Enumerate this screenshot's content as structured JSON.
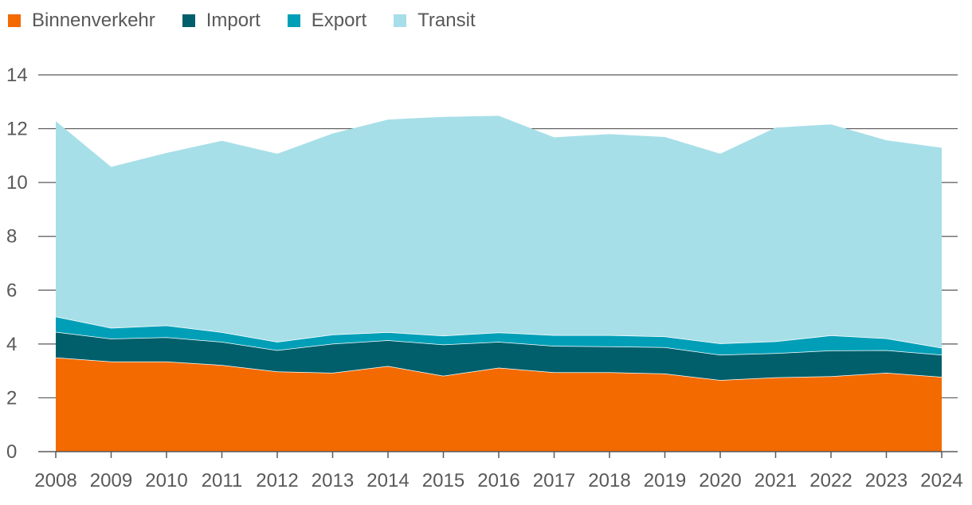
{
  "chart_data": {
    "type": "area",
    "stacked": true,
    "title": "",
    "xlabel": "",
    "ylabel": "",
    "ylim": [
      0,
      14
    ],
    "yticks": [
      0,
      2,
      4,
      6,
      8,
      10,
      12,
      14
    ],
    "grid": true,
    "legend_position": "top-left",
    "x": [
      "2008",
      "2009",
      "2010",
      "2011",
      "2012",
      "2013",
      "2014",
      "2015",
      "2016",
      "2017",
      "2018",
      "2019",
      "2020",
      "2021",
      "2022",
      "2023",
      "2024"
    ],
    "series": [
      {
        "name": "Binnenverkehr",
        "color": "#f26a00",
        "values": [
          3.5,
          3.35,
          3.35,
          3.22,
          2.98,
          2.93,
          3.18,
          2.82,
          3.12,
          2.95,
          2.95,
          2.9,
          2.66,
          2.76,
          2.8,
          2.93,
          2.78
        ]
      },
      {
        "name": "Import",
        "color": "#005f6b",
        "values": [
          0.95,
          0.85,
          0.9,
          0.86,
          0.79,
          1.08,
          0.96,
          1.16,
          0.96,
          0.98,
          0.96,
          0.98,
          0.94,
          0.9,
          0.96,
          0.84,
          0.82
        ]
      },
      {
        "name": "Export",
        "color": "#009fb7",
        "values": [
          0.57,
          0.4,
          0.44,
          0.36,
          0.31,
          0.34,
          0.3,
          0.33,
          0.35,
          0.4,
          0.42,
          0.4,
          0.42,
          0.44,
          0.56,
          0.44,
          0.26
        ]
      },
      {
        "name": "Transit",
        "color": "#a7dfe8",
        "values": [
          7.26,
          5.98,
          6.41,
          7.11,
          6.99,
          7.47,
          7.9,
          8.13,
          8.05,
          7.35,
          7.47,
          7.41,
          7.05,
          7.94,
          7.84,
          7.36,
          7.43
        ]
      }
    ]
  }
}
